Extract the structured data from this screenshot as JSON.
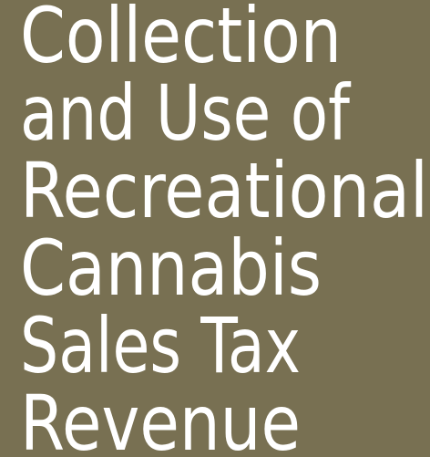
{
  "title": {
    "lines": [
      "Collection",
      "and Use of",
      "Recreational",
      "Cannabis",
      "Sales Tax",
      "Revenue"
    ]
  }
}
